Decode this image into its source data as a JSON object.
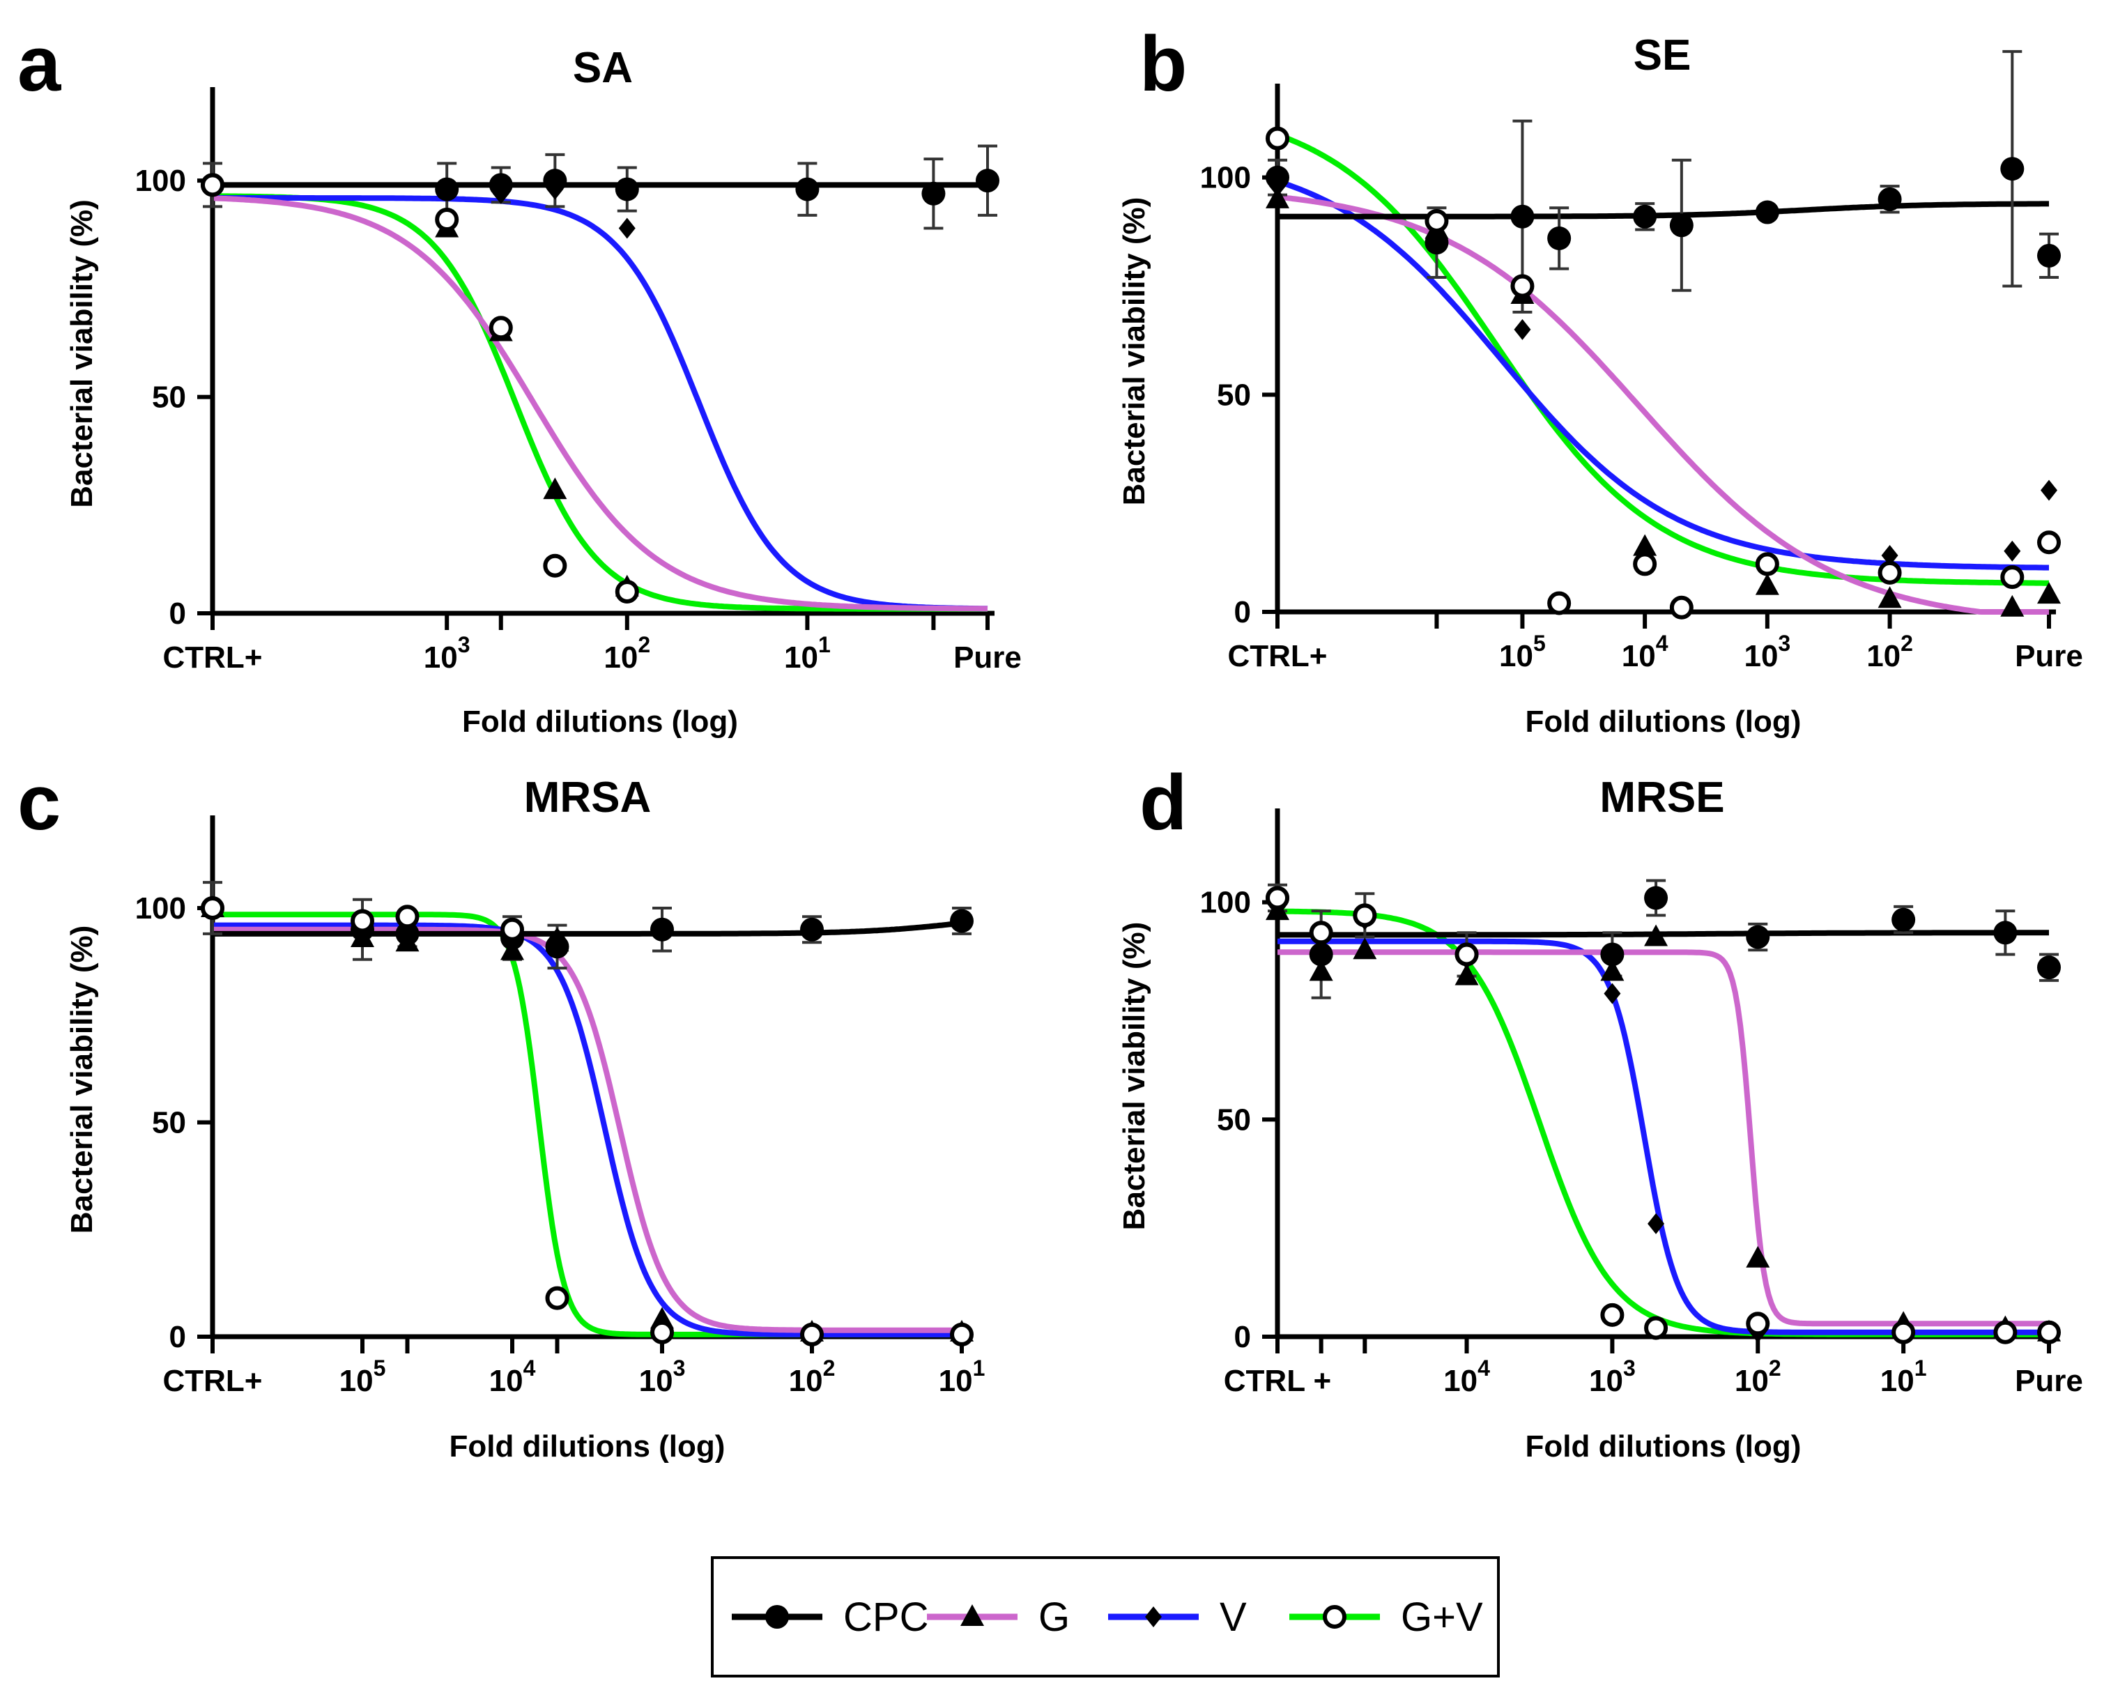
{
  "legend": [
    {
      "key": "CPC",
      "label": "CPC",
      "color": "#000000",
      "marker": "circle"
    },
    {
      "key": "G",
      "label": "G",
      "color": "#cc66cc",
      "marker": "triangle"
    },
    {
      "key": "V",
      "label": "V",
      "color": "#1a1aff",
      "marker": "diamond"
    },
    {
      "key": "GV",
      "label": "G+V",
      "color": "#00ee00",
      "marker": "open-circle"
    }
  ],
  "chart_data": [
    {
      "panel": "a",
      "type": "line",
      "title": "SA",
      "xlabel": "Fold dilutions (log)",
      "ylabel": "Bacterial viability (%)",
      "xlim": [
        0,
        4.3
      ],
      "ylim": [
        0,
        120
      ],
      "yticks": [
        0,
        50,
        100
      ],
      "xticks": [
        {
          "x": 0,
          "base": "CTRL+"
        },
        {
          "x": 1.3,
          "base": "10",
          "exp": "3"
        },
        {
          "x": 1.6
        },
        {
          "x": 2.3,
          "base": "10",
          "exp": "2"
        },
        {
          "x": 3.3,
          "base": "10",
          "exp": "1"
        },
        {
          "x": 4.0
        },
        {
          "x": 4.3,
          "base": "Pure"
        }
      ],
      "series": [
        {
          "key": "CPC",
          "curve": {
            "top": 99,
            "bottom": 99,
            "mid": 2.5,
            "slope": 3
          },
          "points": [
            {
              "x": 0,
              "y": 99,
              "err": 5
            },
            {
              "x": 1.3,
              "y": 98,
              "err": 6
            },
            {
              "x": 1.6,
              "y": 99,
              "err": 4
            },
            {
              "x": 1.9,
              "y": 100,
              "err": 6
            },
            {
              "x": 2.3,
              "y": 98,
              "err": 5
            },
            {
              "x": 3.3,
              "y": 98,
              "err": 6
            },
            {
              "x": 4.0,
              "y": 97,
              "err": 8
            },
            {
              "x": 4.3,
              "y": 100,
              "err": 8
            }
          ]
        },
        {
          "key": "G",
          "curve": {
            "top": 96.5,
            "bottom": 1,
            "mid": 1.78,
            "slope": 2.9
          },
          "points": [
            {
              "x": 1.3,
              "y": 89
            },
            {
              "x": 1.6,
              "y": 65
            },
            {
              "x": 1.9,
              "y": 28.5
            },
            {
              "x": 2.3,
              "y": 6
            }
          ]
        },
        {
          "key": "V",
          "curve": {
            "top": 96,
            "bottom": 1,
            "mid": 2.7,
            "slope": 4.4
          },
          "points": [
            {
              "x": 1.6,
              "y": 97
            },
            {
              "x": 1.9,
              "y": 98
            },
            {
              "x": 2.3,
              "y": 89
            }
          ]
        },
        {
          "key": "GV",
          "curve": {
            "top": 96.5,
            "bottom": 1,
            "mid": 1.68,
            "slope": 4.4
          },
          "points": [
            {
              "x": 0,
              "y": 99
            },
            {
              "x": 1.3,
              "y": 91
            },
            {
              "x": 1.6,
              "y": 66
            },
            {
              "x": 1.9,
              "y": 11
            },
            {
              "x": 2.3,
              "y": 5
            }
          ]
        }
      ]
    },
    {
      "panel": "b",
      "type": "line",
      "title": "SE",
      "xlabel": "Fold dilutions (log)",
      "ylabel": "Bacterial viability (%)",
      "xlim": [
        0,
        6.3
      ],
      "ylim": [
        0,
        120
      ],
      "yticks": [
        0,
        50,
        100
      ],
      "xticks": [
        {
          "x": 0,
          "base": "CTRL+"
        },
        {
          "x": 1.3
        },
        {
          "x": 2.0,
          "base": "10",
          "exp": "5"
        },
        {
          "x": 3.0,
          "base": "10",
          "exp": "4"
        },
        {
          "x": 4.0,
          "base": "10",
          "exp": "3"
        },
        {
          "x": 5.0,
          "base": "10",
          "exp": "2"
        },
        {
          "x": 6.3,
          "base": "Pure"
        }
      ],
      "series": [
        {
          "key": "CPC",
          "curve": {
            "top": 91,
            "bottom": 94,
            "mid": 4.3,
            "slope": 2
          },
          "points": [
            {
              "x": 0,
              "y": 100,
              "err": 4
            },
            {
              "x": 1.3,
              "y": 85,
              "err": 8
            },
            {
              "x": 2.0,
              "y": 91,
              "err": 22
            },
            {
              "x": 2.3,
              "y": 86,
              "err": 7
            },
            {
              "x": 3.0,
              "y": 91,
              "err": 3
            },
            {
              "x": 3.3,
              "y": 89,
              "err": 15
            },
            {
              "x": 4.0,
              "y": 92,
              "err": 1
            },
            {
              "x": 5.0,
              "y": 95,
              "err": 3
            },
            {
              "x": 6.0,
              "y": 102,
              "err": 27
            },
            {
              "x": 6.3,
              "y": 82,
              "err": 5
            }
          ]
        },
        {
          "key": "G",
          "curve": {
            "top": 98,
            "bottom": -3,
            "mid": 2.95,
            "slope": 1.25
          },
          "points": [
            {
              "x": 0,
              "y": 95
            },
            {
              "x": 1.3,
              "y": 88
            },
            {
              "x": 2.0,
              "y": 73
            },
            {
              "x": 3.0,
              "y": 15
            },
            {
              "x": 4.0,
              "y": 6
            },
            {
              "x": 5.0,
              "y": 3
            },
            {
              "x": 6.0,
              "y": 1
            },
            {
              "x": 6.3,
              "y": 4
            }
          ]
        },
        {
          "key": "V",
          "curve": {
            "top": 106,
            "bottom": 10,
            "mid": 1.83,
            "slope": 1.4
          },
          "points": [
            {
              "x": 0,
              "y": 98
            },
            {
              "x": 1.3,
              "y": 86
            },
            {
              "x": 2.0,
              "y": 65
            },
            {
              "x": 3.0,
              "y": 12
            },
            {
              "x": 4.0,
              "y": 11
            },
            {
              "x": 5.0,
              "y": 13
            },
            {
              "x": 6.0,
              "y": 14
            },
            {
              "x": 6.3,
              "y": 28
            }
          ]
        },
        {
          "key": "GV",
          "curve": {
            "top": 117,
            "bottom": 6.5,
            "mid": 1.78,
            "slope": 1.5
          },
          "points": [
            {
              "x": 0,
              "y": 109
            },
            {
              "x": 1.3,
              "y": 90
            },
            {
              "x": 2.0,
              "y": 75
            },
            {
              "x": 2.3,
              "y": 2
            },
            {
              "x": 3.0,
              "y": 11
            },
            {
              "x": 3.3,
              "y": 1
            },
            {
              "x": 4.0,
              "y": 11
            },
            {
              "x": 5.0,
              "y": 9
            },
            {
              "x": 6.0,
              "y": 8
            },
            {
              "x": 6.3,
              "y": 16
            }
          ]
        }
      ]
    },
    {
      "panel": "c",
      "type": "line",
      "title": "MRSA",
      "xlabel": "Fold dilutions (log)",
      "ylabel": "Bacterial viability (%)",
      "xlim": [
        0,
        5.0
      ],
      "ylim": [
        0,
        120
      ],
      "yticks": [
        0,
        50,
        100
      ],
      "xticks": [
        {
          "x": 0,
          "base": "CTRL+"
        },
        {
          "x": 1.0,
          "base": "10",
          "exp": "5"
        },
        {
          "x": 1.3
        },
        {
          "x": 2.0,
          "base": "10",
          "exp": "4"
        },
        {
          "x": 2.3
        },
        {
          "x": 3.0,
          "base": "10",
          "exp": "3"
        },
        {
          "x": 4.0,
          "base": "10",
          "exp": "2"
        },
        {
          "x": 5.0,
          "base": "10",
          "exp": "1"
        }
      ],
      "series": [
        {
          "key": "CPC",
          "curve": {
            "top": 94,
            "bottom": 99,
            "mid": 5.0,
            "slope": 3
          },
          "points": [
            {
              "x": 0,
              "y": 100,
              "err": 6
            },
            {
              "x": 1.0,
              "y": 95,
              "err": 7
            },
            {
              "x": 1.3,
              "y": 94,
              "err": 3
            },
            {
              "x": 2.0,
              "y": 93,
              "err": 5
            },
            {
              "x": 2.3,
              "y": 91,
              "err": 5
            },
            {
              "x": 3.0,
              "y": 95,
              "err": 5
            },
            {
              "x": 4.0,
              "y": 95,
              "err": 3
            },
            {
              "x": 5.0,
              "y": 97,
              "err": 3
            }
          ]
        },
        {
          "key": "G",
          "curve": {
            "top": 95,
            "bottom": 1.5,
            "mid": 2.72,
            "slope": 6.5
          },
          "points": [
            {
              "x": 0,
              "y": 100
            },
            {
              "x": 1.0,
              "y": 93
            },
            {
              "x": 1.3,
              "y": 92
            },
            {
              "x": 2.0,
              "y": 90
            },
            {
              "x": 2.3,
              "y": 92
            },
            {
              "x": 3.0,
              "y": 4
            },
            {
              "x": 4.0,
              "y": 1
            },
            {
              "x": 5.0,
              "y": 1
            }
          ]
        },
        {
          "key": "V",
          "curve": {
            "top": 96,
            "bottom": 0.5,
            "mid": 2.62,
            "slope": 6.5
          },
          "points": [
            {
              "x": 0,
              "y": 100
            },
            {
              "x": 1.0,
              "y": 95
            },
            {
              "x": 1.3,
              "y": 95
            },
            {
              "x": 2.0,
              "y": 94
            },
            {
              "x": 2.3,
              "y": 93
            },
            {
              "x": 3.0,
              "y": 1
            },
            {
              "x": 4.0,
              "y": 1
            },
            {
              "x": 5.0,
              "y": 0.5
            }
          ]
        },
        {
          "key": "GV",
          "curve": {
            "top": 98.5,
            "bottom": 0.5,
            "mid": 2.18,
            "slope": 12
          },
          "points": [
            {
              "x": 0,
              "y": 100
            },
            {
              "x": 1.0,
              "y": 97
            },
            {
              "x": 1.3,
              "y": 98
            },
            {
              "x": 2.0,
              "y": 95
            },
            {
              "x": 2.3,
              "y": 9
            },
            {
              "x": 3.0,
              "y": 1
            },
            {
              "x": 4.0,
              "y": 0.5
            },
            {
              "x": 5.0,
              "y": 0.5
            }
          ]
        }
      ]
    },
    {
      "panel": "d",
      "type": "line",
      "title": "MRSE",
      "xlabel": "Fold dilutions (log)",
      "ylabel": "Bacterial viability (%)",
      "xlim": [
        0,
        5.3
      ],
      "ylim": [
        0,
        120
      ],
      "yticks": [
        0,
        50,
        100
      ],
      "xticks": [
        {
          "x": 0,
          "base": "CTRL +"
        },
        {
          "x": 0.3
        },
        {
          "x": 0.6
        },
        {
          "x": 1.3,
          "base": "10",
          "exp": "4"
        },
        {
          "x": 2.3,
          "base": "10",
          "exp": "3"
        },
        {
          "x": 3.3,
          "base": "10",
          "exp": "2"
        },
        {
          "x": 4.3,
          "base": "10",
          "exp": "1"
        },
        {
          "x": 5.3,
          "base": "Pure"
        }
      ],
      "series": [
        {
          "key": "CPC",
          "curve": {
            "top": 92.5,
            "bottom": 93,
            "mid": 3,
            "slope": 2
          },
          "points": [
            {
              "x": 0,
              "y": 101,
              "err": 3
            },
            {
              "x": 0.3,
              "y": 88,
              "err": 10
            },
            {
              "x": 0.6,
              "y": 97,
              "err": 5
            },
            {
              "x": 1.3,
              "y": 88,
              "err": 5
            },
            {
              "x": 2.3,
              "y": 88,
              "err": 5
            },
            {
              "x": 2.6,
              "y": 101,
              "err": 4
            },
            {
              "x": 3.3,
              "y": 92,
              "err": 3
            },
            {
              "x": 4.3,
              "y": 96,
              "err": 3
            },
            {
              "x": 5.0,
              "y": 93,
              "err": 5
            },
            {
              "x": 5.3,
              "y": 85,
              "err": 3
            }
          ]
        },
        {
          "key": "G",
          "curve": {
            "top": 88.5,
            "bottom": 3,
            "mid": 3.25,
            "slope": 20
          },
          "points": [
            {
              "x": 0,
              "y": 98
            },
            {
              "x": 0.3,
              "y": 84
            },
            {
              "x": 0.6,
              "y": 89
            },
            {
              "x": 1.3,
              "y": 83
            },
            {
              "x": 2.3,
              "y": 84
            },
            {
              "x": 2.6,
              "y": 92
            },
            {
              "x": 3.3,
              "y": 18
            },
            {
              "x": 4.3,
              "y": 3
            },
            {
              "x": 5.0,
              "y": 2
            },
            {
              "x": 5.3,
              "y": 1
            }
          ]
        },
        {
          "key": "V",
          "curve": {
            "top": 91,
            "bottom": 1,
            "mid": 2.52,
            "slope": 8.5
          },
          "points": [
            {
              "x": 0,
              "y": 99
            },
            {
              "x": 0.3,
              "y": 88
            },
            {
              "x": 0.6,
              "y": 96
            },
            {
              "x": 1.3,
              "y": 87
            },
            {
              "x": 2.3,
              "y": 79
            },
            {
              "x": 2.6,
              "y": 26
            },
            {
              "x": 3.3,
              "y": 1
            },
            {
              "x": 4.3,
              "y": 2
            },
            {
              "x": 5.0,
              "y": 1
            },
            {
              "x": 5.3,
              "y": 1
            }
          ]
        },
        {
          "key": "GV",
          "curve": {
            "top": 98,
            "bottom": 0.5,
            "mid": 1.8,
            "slope": 4
          },
          "points": [
            {
              "x": 0,
              "y": 101
            },
            {
              "x": 0.3,
              "y": 93
            },
            {
              "x": 0.6,
              "y": 97
            },
            {
              "x": 1.3,
              "y": 88
            },
            {
              "x": 2.3,
              "y": 5
            },
            {
              "x": 2.6,
              "y": 2
            },
            {
              "x": 3.3,
              "y": 3
            },
            {
              "x": 4.3,
              "y": 1
            },
            {
              "x": 5.0,
              "y": 1
            },
            {
              "x": 5.3,
              "y": 1
            }
          ]
        }
      ]
    }
  ]
}
